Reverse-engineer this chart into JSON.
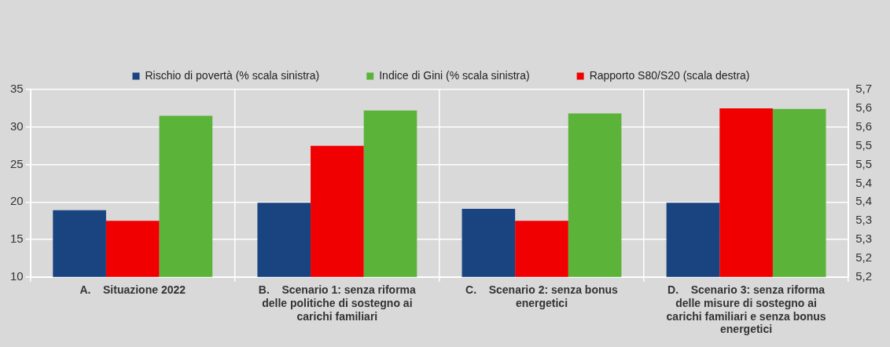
{
  "chart_data": {
    "type": "bar",
    "categories": [
      "A.    Situazione 2022",
      "B.    Scenario 1: senza riforma delle politiche di sostegno ai carichi familiari",
      "C.    Scenario 2: senza bonus energetici",
      "D.    Scenario 3: senza riforma delle misure di sostegno ai carichi familiari e senza bonus energetici"
    ],
    "series": [
      {
        "name": "Rischio di povertà (% scala sinistra)",
        "color": "#1a4480",
        "values": [
          18.9,
          19.9,
          19.1,
          19.9
        ]
      },
      {
        "name": "Rapporto S80/S20 (scala destra)",
        "color": "#f00000",
        "axis": "y2",
        "values": [
          5.35,
          5.55,
          5.35,
          5.65
        ]
      },
      {
        "name": "Indice di Gini (% scala sinistra)",
        "color": "#5bb33a",
        "values": [
          31.5,
          32.2,
          31.8,
          32.4
        ]
      }
    ],
    "ylim": [
      10,
      35
    ],
    "yticks": [
      10,
      15,
      20,
      25,
      30,
      35
    ],
    "y2lim": [
      5.2,
      5.7
    ],
    "y2ticks": [
      {
        "value": 5.2,
        "label": "5,2"
      },
      {
        "value": 5.25,
        "label": "5,2"
      },
      {
        "value": 5.3,
        "label": "5,3"
      },
      {
        "value": 5.35,
        "label": "5,3"
      },
      {
        "value": 5.4,
        "label": "5,4"
      },
      {
        "value": 5.45,
        "label": "5,4"
      },
      {
        "value": 5.5,
        "label": "5,5"
      },
      {
        "value": 5.55,
        "label": "5,5"
      },
      {
        "value": 5.6,
        "label": "5,6"
      },
      {
        "value": 5.65,
        "label": "5,6"
      },
      {
        "value": 5.7,
        "label": "5,7"
      }
    ],
    "grid": true,
    "legend": "top"
  }
}
